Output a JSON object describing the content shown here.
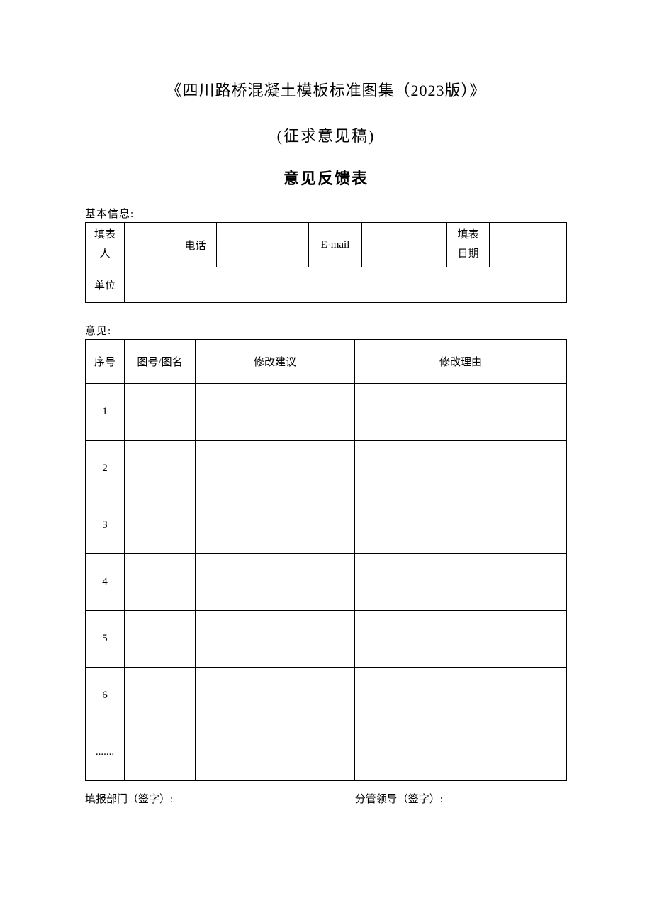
{
  "title": "《四川路桥混凝土模板标准图集（2023版）》",
  "subtitle": "(征求意见稿)",
  "form_title": "意见反馈表",
  "basic_info": {
    "section_label": "基本信息:",
    "labels": {
      "filler_line1": "填表",
      "filler_line2": "人",
      "phone": "电话",
      "email": "E-mail",
      "date_line1": "填表",
      "date_line2": "日期",
      "unit": "单位"
    },
    "values": {
      "filler": "",
      "phone": "",
      "email": "",
      "date": "",
      "unit": ""
    },
    "col_widths": {
      "c1": "55px",
      "c2": "70px",
      "c3": "60px",
      "c4": "130px",
      "c5": "75px",
      "c6": "120px",
      "c7": "60px",
      "c8": "auto"
    }
  },
  "opinions": {
    "section_label": "意见:",
    "headers": {
      "seq": "序号",
      "name": "图号/图名",
      "suggestion": "修改建议",
      "reason": "修改理由"
    },
    "rows": [
      {
        "seq": "1",
        "name": "",
        "suggestion": "",
        "reason": ""
      },
      {
        "seq": "2",
        "name": "",
        "suggestion": "",
        "reason": ""
      },
      {
        "seq": "3",
        "name": "",
        "suggestion": "",
        "reason": ""
      },
      {
        "seq": "4",
        "name": "",
        "suggestion": "",
        "reason": ""
      },
      {
        "seq": "5",
        "name": "",
        "suggestion": "",
        "reason": ""
      },
      {
        "seq": "6",
        "name": "",
        "suggestion": "",
        "reason": ""
      },
      {
        "seq": ".......",
        "name": "",
        "suggestion": "",
        "reason": ""
      }
    ]
  },
  "signatures": {
    "dept": "填报部门（签字）:",
    "leader": "分管领导（签字）:"
  },
  "colors": {
    "background": "#ffffff",
    "text": "#000000",
    "border": "#000000"
  }
}
